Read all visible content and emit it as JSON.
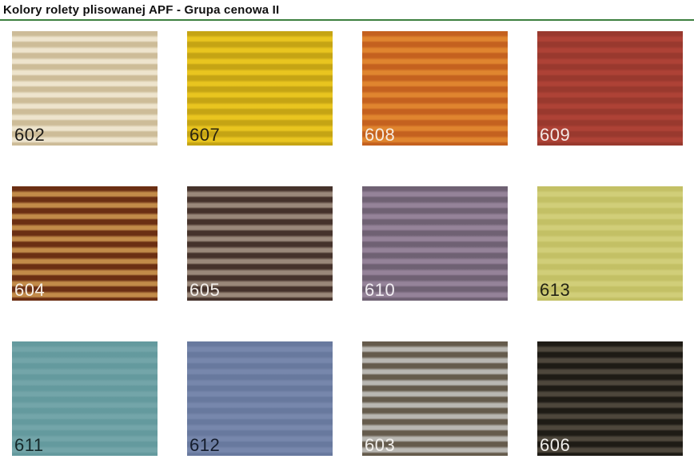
{
  "page": {
    "title": "Kolory rolety plisowanej APF - Grupa cenowa II",
    "divider_color": "#3d8040",
    "background_color": "#ffffff"
  },
  "swatches": [
    {
      "code": "602",
      "light": "#eee4cd",
      "dark": "#cdbc98",
      "label_color": "#1e1c18"
    },
    {
      "code": "607",
      "light": "#e9c51f",
      "dark": "#c5a414",
      "label_color": "#2a2410"
    },
    {
      "code": "608",
      "light": "#e0852f",
      "dark": "#c4611f",
      "label_color": "#f7ede2"
    },
    {
      "code": "609",
      "light": "#ae4236",
      "dark": "#99392e",
      "label_color": "#f5e9e6"
    },
    {
      "code": "604",
      "light": "#c28b49",
      "dark": "#6b2f13",
      "label_color": "#f6efe6"
    },
    {
      "code": "605",
      "light": "#9a887a",
      "dark": "#45322b",
      "label_color": "#f2eeea"
    },
    {
      "code": "610",
      "light": "#958399",
      "dark": "#6f6173",
      "label_color": "#f1edf2"
    },
    {
      "code": "613",
      "light": "#d1ce79",
      "dark": "#c3c065",
      "label_color": "#232314"
    },
    {
      "code": "611",
      "light": "#73a5a9",
      "dark": "#649a9e",
      "label_color": "#16292a"
    },
    {
      "code": "612",
      "light": "#7787ac",
      "dark": "#68799e",
      "label_color": "#151d2d"
    },
    {
      "code": "603",
      "light": "#b9b7b2",
      "dark": "#655b4c",
      "label_color": "#f3f1ee"
    },
    {
      "code": "606",
      "light": "#4e473c",
      "dark": "#1e1b15",
      "label_color": "#f1efec"
    }
  ]
}
